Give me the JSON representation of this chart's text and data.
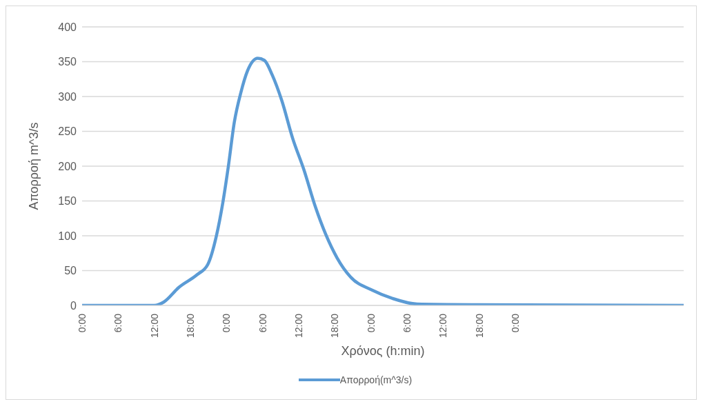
{
  "chart_data": {
    "type": "line",
    "xlabel": "Χρόνος (h:min)",
    "ylabel": "Απορροή m^3/s",
    "x": [
      "--01-01T00:00",
      "--01-01T10:00",
      "--01-01T12:00",
      "--01-01T13:36",
      "--01-01T16:06",
      "--01-01T19:06",
      "--01-01T20:54",
      "--01-01T22:18",
      "--01-01T23:24",
      "--01-02T00:18",
      "--01-02T01:18",
      "--01-02T02:24",
      "--01-02T03:30",
      "--01-02T05:12",
      "--01-02T06:18",
      "--01-02T07:36",
      "--01-02T09:12",
      "--01-02T11:00",
      "--01-02T12:54",
      "--01-02T14:48",
      "--01-02T16:30",
      "--01-02T18:24",
      "--01-02T20:36",
      "--01-03T00:12",
      "--01-03T03:36",
      "--01-03T07:42",
      "--01-03T17:36",
      "--01-05T04:00"
    ],
    "series": [
      {
        "name": "Απορροή(m^3/s)",
        "color": "#5b9bd5",
        "values": [
          0,
          0,
          0,
          5,
          26,
          44,
          59,
          99,
          148,
          199,
          263,
          306,
          337,
          355,
          352,
          331,
          294,
          240,
          194,
          141,
          102,
          68,
          41,
          22,
          10,
          2,
          1,
          0
        ]
      }
    ],
    "xlim": [
      "--01-01T00:00",
      "--01-05T04:00"
    ],
    "xticks": [
      {
        "value": "--01-01T00:00",
        "label": "0:00"
      },
      {
        "value": "--01-01T06:00",
        "label": "6:00"
      },
      {
        "value": "--01-01T12:00",
        "label": "12:00"
      },
      {
        "value": "--01-01T18:00",
        "label": "18:00"
      },
      {
        "value": "--01-02T00:00",
        "label": "0:00"
      },
      {
        "value": "--01-02T06:00",
        "label": "6:00"
      },
      {
        "value": "--01-02T12:00",
        "label": "12:00"
      },
      {
        "value": "--01-02T18:00",
        "label": "18:00"
      },
      {
        "value": "--01-03T00:00",
        "label": "0:00"
      },
      {
        "value": "--01-03T06:00",
        "label": "6:00"
      },
      {
        "value": "--01-03T12:00",
        "label": "12:00"
      },
      {
        "value": "--01-03T18:00",
        "label": "18:00"
      },
      {
        "value": "--01-04T00:00",
        "label": "0:00"
      }
    ],
    "ylim": [
      0,
      400
    ],
    "yticks": [
      0,
      50,
      100,
      150,
      200,
      250,
      300,
      350,
      400
    ],
    "grid": "y",
    "legend": "bottom",
    "marker": "none",
    "line_style": "solid"
  }
}
